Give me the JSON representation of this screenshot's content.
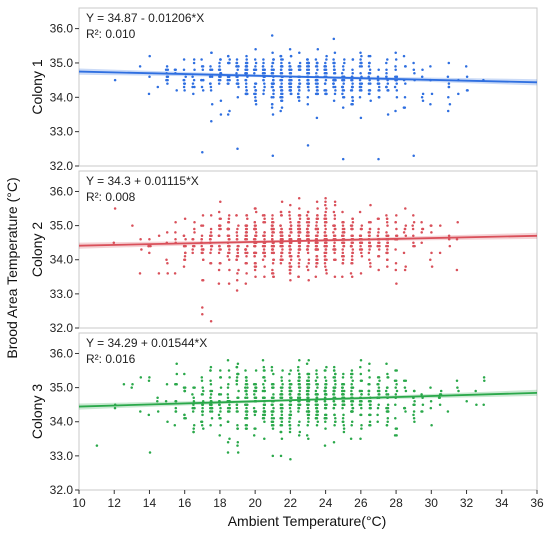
{
  "chart_data": {
    "type": "scatter",
    "xlabel": "Ambient Temperature(°C)",
    "ylabel": "Brood Area Temperature (°C)",
    "xlim": [
      10,
      36
    ],
    "x_ticks": [
      "10",
      "12",
      "14",
      "16",
      "18",
      "20",
      "22",
      "24",
      "26",
      "28",
      "30",
      "32",
      "34",
      "36"
    ],
    "grid": false,
    "panels": [
      {
        "name": "Colony 1",
        "color": "#2f6fe0",
        "equation": "Y = 34.87 - 0.01206*X",
        "r2": "R²: 0.010",
        "ylim": [
          32.0,
          36.6
        ],
        "y_ticks": [
          "32.0",
          "33.0",
          "34.0",
          "35.0",
          "36.0"
        ],
        "fit": {
          "intercept": 34.87,
          "slope": -0.01206
        },
        "x_range": [
          11,
          35
        ],
        "x_dist": {
          "mean": 22.5,
          "sd": 3.6
        },
        "y_mean_offset": -0.05,
        "y_spread": 0.38,
        "n_points": 620,
        "low_outliers": [
          [
            17,
            32.4
          ],
          [
            21,
            32.3
          ],
          [
            25,
            32.2
          ],
          [
            27,
            32.2
          ],
          [
            29,
            32.3
          ],
          [
            19,
            32.5
          ],
          [
            23,
            32.6
          ]
        ]
      },
      {
        "name": "Colony 2",
        "color": "#d9505a",
        "equation": "Y = 34.3 + 0.01115*X",
        "r2": "R²: 0.008",
        "ylim": [
          32.0,
          36.6
        ],
        "y_ticks": [
          "32.0",
          "33.0",
          "34.0",
          "35.0",
          "36.0"
        ],
        "fit": {
          "intercept": 34.3,
          "slope": 0.01115
        },
        "x_range": [
          11,
          32
        ],
        "x_dist": {
          "mean": 22.5,
          "sd": 3.5
        },
        "y_mean_offset": 0.0,
        "y_spread": 0.45,
        "n_points": 820,
        "low_outliers": [
          [
            17,
            32.4
          ],
          [
            17.5,
            32.2
          ],
          [
            17,
            32.6
          ]
        ]
      },
      {
        "name": "Colony 3",
        "color": "#2aa84a",
        "equation": "Y = 34.29 + 0.01544*X",
        "r2": "R²: 0.016",
        "ylim": [
          32.0,
          36.6
        ],
        "y_ticks": [
          "32.0",
          "33.0",
          "34.0",
          "35.0",
          "36.0"
        ],
        "fit": {
          "intercept": 34.29,
          "slope": 0.01544
        },
        "x_range": [
          11,
          35
        ],
        "x_dist": {
          "mean": 22.5,
          "sd": 3.8
        },
        "y_mean_offset": 0.02,
        "y_spread": 0.48,
        "n_points": 820,
        "low_outliers": [
          [
            22,
            32.9
          ],
          [
            21,
            33.0
          ],
          [
            19,
            33.3
          ]
        ]
      }
    ]
  }
}
